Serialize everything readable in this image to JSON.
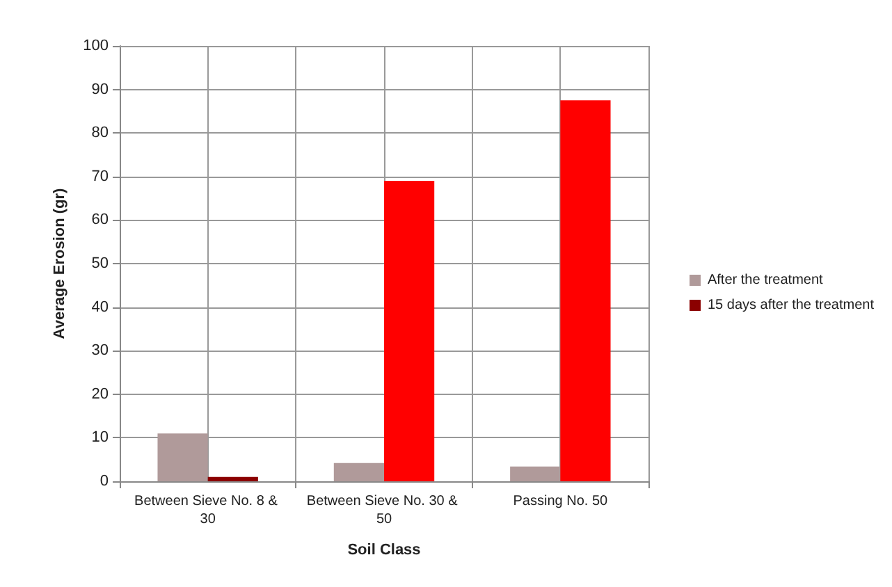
{
  "chart_data": {
    "type": "bar",
    "xlabel": "Soil Class",
    "ylabel": "Average Erosion (gr)",
    "categories": [
      "Between Sieve No. 8 & 30",
      "Between Sieve No. 30 & 50",
      "Passing No. 50"
    ],
    "series": [
      {
        "name": "After the treatment",
        "color": "#b09a9a",
        "values": [
          11,
          4.2,
          3.4
        ]
      },
      {
        "name": "15 days after the treatment",
        "color": "#8b0000",
        "colors": [
          "#8b0000",
          "#ff0000",
          "#ff0000"
        ],
        "values": [
          1,
          69,
          87.5
        ]
      }
    ],
    "ylim": [
      0,
      100
    ],
    "yticks": [
      0,
      10,
      20,
      30,
      40,
      50,
      60,
      70,
      80,
      90,
      100
    ],
    "grid": true,
    "legend": "right"
  }
}
